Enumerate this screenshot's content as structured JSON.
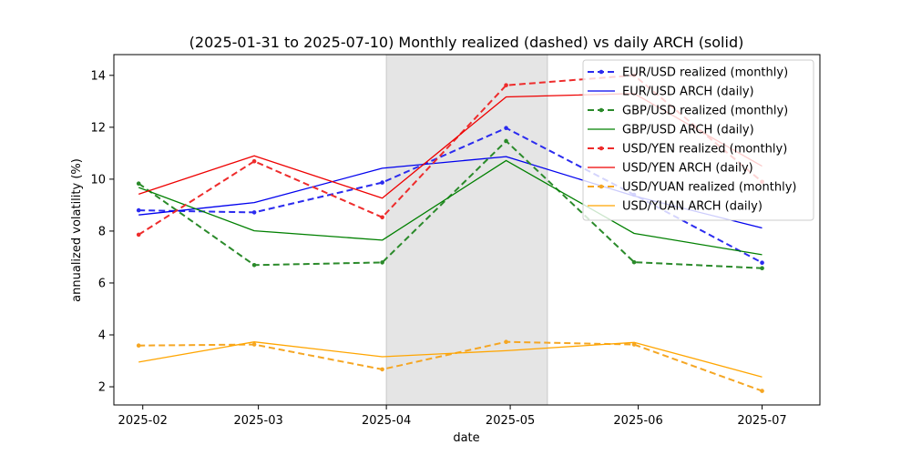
{
  "chart_data": {
    "type": "line",
    "title": "(2025-01-31 to 2025-07-10) Monthly realized (dashed) vs daily ARCH (solid)",
    "xlabel": "date",
    "ylabel": "annualized volatility (%)",
    "x_tick_labels": [
      "2025-02",
      "2025-03",
      "2025-04",
      "2025-05",
      "2025-06",
      "2025-07"
    ],
    "x_ticks": [
      "2025-02-01",
      "2025-03-01",
      "2025-04-01",
      "2025-05-01",
      "2025-06-01",
      "2025-07-01"
    ],
    "xlim": [
      "2025-01-25",
      "2025-07-15"
    ],
    "y_ticks": [
      2,
      4,
      6,
      8,
      10,
      12,
      14
    ],
    "ylim": [
      1.3,
      14.8
    ],
    "grid": false,
    "legend_position": "top-right",
    "shaded_region": {
      "start": "2025-04-01",
      "end": "2025-05-10",
      "color": "#e5e5e5"
    },
    "series": [
      {
        "name": "EUR/USD realized (monthly)",
        "style": "dashed",
        "marker": true,
        "color": "#2b2bef",
        "x": [
          "2025-01-31",
          "2025-02-28",
          "2025-03-31",
          "2025-04-30",
          "2025-05-31",
          "2025-07-01"
        ],
        "y": [
          8.8,
          8.72,
          9.87,
          11.97,
          9.4,
          6.78
        ]
      },
      {
        "name": "EUR/USD ARCH (daily)",
        "style": "solid",
        "marker": false,
        "color": "#0000ee",
        "x": [
          "2025-01-31",
          "2025-02-28",
          "2025-03-31",
          "2025-04-30",
          "2025-05-31",
          "2025-07-01"
        ],
        "y": [
          8.62,
          9.1,
          10.42,
          10.87,
          9.35,
          8.12
        ]
      },
      {
        "name": "GBP/USD realized (monthly)",
        "style": "dashed",
        "marker": true,
        "color": "#2a8a2a",
        "x": [
          "2025-01-31",
          "2025-02-28",
          "2025-03-31",
          "2025-04-30",
          "2025-05-31",
          "2025-07-01"
        ],
        "y": [
          9.83,
          6.69,
          6.79,
          11.47,
          6.8,
          6.57
        ]
      },
      {
        "name": "GBP/USD ARCH (daily)",
        "style": "solid",
        "marker": false,
        "color": "#008000",
        "x": [
          "2025-01-31",
          "2025-02-28",
          "2025-03-31",
          "2025-04-30",
          "2025-05-31",
          "2025-07-01"
        ],
        "y": [
          9.68,
          8.01,
          7.65,
          10.72,
          7.91,
          7.09
        ]
      },
      {
        "name": "USD/YEN realized (monthly)",
        "style": "dashed",
        "marker": true,
        "color": "#ee2b2b",
        "x": [
          "2025-01-31",
          "2025-02-28",
          "2025-03-31",
          "2025-04-30",
          "2025-05-31",
          "2025-07-01"
        ],
        "y": [
          7.86,
          10.69,
          8.53,
          13.62,
          14.0,
          9.9
        ]
      },
      {
        "name": "USD/YEN ARCH (daily)",
        "style": "solid",
        "marker": false,
        "color": "#ee0000",
        "x": [
          "2025-01-31",
          "2025-02-28",
          "2025-03-31",
          "2025-04-30",
          "2025-05-31",
          "2025-07-01"
        ],
        "y": [
          9.42,
          10.9,
          9.27,
          13.17,
          13.3,
          10.5
        ]
      },
      {
        "name": "USD/YUAN realized (monthly)",
        "style": "dashed",
        "marker": true,
        "color": "#f5a623",
        "x": [
          "2025-01-31",
          "2025-02-28",
          "2025-03-31",
          "2025-04-30",
          "2025-05-31",
          "2025-07-01"
        ],
        "y": [
          3.59,
          3.63,
          2.67,
          3.73,
          3.63,
          1.84
        ]
      },
      {
        "name": "USD/YUAN ARCH (daily)",
        "style": "solid",
        "marker": false,
        "color": "#ffa500",
        "x": [
          "2025-01-31",
          "2025-02-28",
          "2025-03-31",
          "2025-04-30",
          "2025-05-31",
          "2025-07-01"
        ],
        "y": [
          2.95,
          3.73,
          3.16,
          3.39,
          3.71,
          2.38
        ]
      }
    ]
  }
}
